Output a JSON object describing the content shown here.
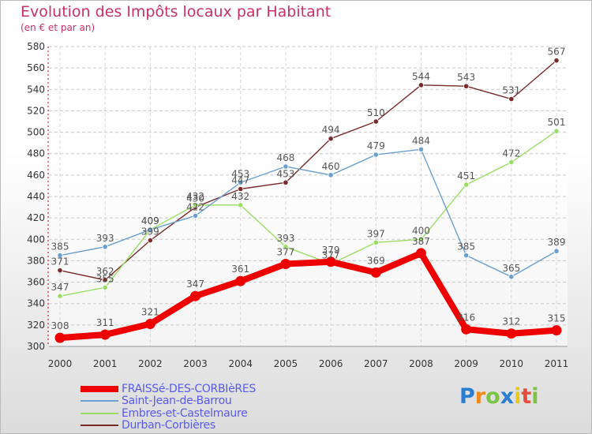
{
  "header": {
    "title": "Evolution des Impôts locaux par Habitant",
    "subtitle": "(en € et par an)"
  },
  "branding": {
    "letters": [
      "P",
      "r",
      "o",
      "x",
      "i",
      "t",
      "i"
    ],
    "colors": [
      "#2a7fd4",
      "#f08a1c",
      "#7cc443",
      "#2a7fd4",
      "#e8c81e",
      "#e84b3c",
      "#7cc443"
    ]
  },
  "chart_data": {
    "type": "line",
    "title": "Evolution des Impôts locaux par Habitant",
    "subtitle": "(en € et par an)",
    "xlabel": "",
    "ylabel": "",
    "x": [
      "2000",
      "2001",
      "2002",
      "2003",
      "2004",
      "2005",
      "2006",
      "2007",
      "2008",
      "2009",
      "2010",
      "2011"
    ],
    "ylim": [
      300,
      580
    ],
    "yticks": [
      300,
      320,
      340,
      360,
      380,
      400,
      420,
      440,
      460,
      480,
      500,
      520,
      540,
      560,
      580
    ],
    "grid": true,
    "legend": "bottom-left",
    "series": [
      {
        "name": "FRAISSé-DES-CORBIèRES",
        "color": "#ee0000",
        "values": [
          308,
          311,
          321,
          347,
          361,
          377,
          379,
          369,
          387,
          316,
          312,
          315
        ]
      },
      {
        "name": "Saint-Jean-de-Barrou",
        "color": "#6aa0d0",
        "values": [
          385,
          393,
          409,
          422,
          453,
          468,
          460,
          479,
          484,
          385,
          365,
          389
        ]
      },
      {
        "name": "Embres-et-Castelmaure",
        "color": "#99dd66",
        "values": [
          347,
          355,
          409,
          432,
          432,
          393,
          377,
          397,
          400,
          451,
          472,
          501
        ]
      },
      {
        "name": "Durban-Corbières",
        "color": "#7a2a2a",
        "values": [
          371,
          362,
          399,
          430,
          447,
          453,
          494,
          510,
          544,
          543,
          531,
          567
        ]
      }
    ]
  }
}
